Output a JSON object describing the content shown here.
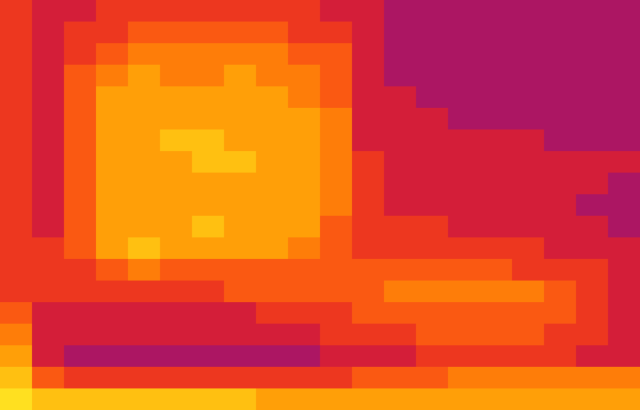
{
  "chart_data": {
    "type": "heatmap",
    "tick_labels": false,
    "zlim": [
      0,
      10
    ],
    "cells": [
      [
        5,
        4,
        4,
        5,
        5,
        5,
        5,
        5,
        5,
        5,
        4,
        4,
        3,
        3,
        3,
        3,
        3,
        3,
        3,
        3
      ],
      [
        5,
        4,
        5,
        5,
        6,
        6,
        6,
        6,
        6,
        5,
        5,
        4,
        3,
        3,
        3,
        3,
        3,
        3,
        3,
        3
      ],
      [
        5,
        4,
        5,
        6,
        7,
        7,
        7,
        7,
        7,
        6,
        6,
        4,
        3,
        3,
        3,
        3,
        3,
        3,
        3,
        3
      ],
      [
        5,
        4,
        6,
        7,
        8,
        7,
        7,
        8,
        7,
        7,
        6,
        4,
        3,
        3,
        3,
        3,
        3,
        3,
        3,
        3
      ],
      [
        5,
        4,
        6,
        8,
        8,
        8,
        8,
        8,
        8,
        7,
        6,
        4,
        4,
        3,
        3,
        3,
        3,
        3,
        3,
        3
      ],
      [
        5,
        4,
        6,
        8,
        8,
        8,
        8,
        8,
        8,
        8,
        7,
        4,
        4,
        4,
        3,
        3,
        3,
        3,
        3,
        3
      ],
      [
        5,
        4,
        6,
        8,
        8,
        9,
        9,
        8,
        8,
        8,
        7,
        4,
        4,
        4,
        4,
        4,
        4,
        3,
        3,
        3
      ],
      [
        5,
        4,
        6,
        8,
        8,
        8,
        9,
        9,
        8,
        8,
        7,
        5,
        4,
        4,
        4,
        4,
        4,
        4,
        4,
        4
      ],
      [
        5,
        4,
        6,
        8,
        8,
        8,
        8,
        8,
        8,
        8,
        7,
        5,
        4,
        4,
        4,
        4,
        4,
        4,
        4,
        3
      ],
      [
        5,
        4,
        6,
        8,
        8,
        8,
        8,
        8,
        8,
        8,
        7,
        5,
        4,
        4,
        4,
        4,
        4,
        4,
        3,
        3
      ],
      [
        5,
        4,
        6,
        8,
        8,
        8,
        9,
        8,
        8,
        8,
        6,
        5,
        5,
        5,
        4,
        4,
        4,
        4,
        4,
        3
      ],
      [
        5,
        5,
        6,
        8,
        9,
        8,
        8,
        8,
        8,
        7,
        6,
        5,
        5,
        5,
        5,
        5,
        5,
        4,
        4,
        4
      ],
      [
        5,
        5,
        5,
        6,
        7,
        6,
        6,
        6,
        6,
        6,
        6,
        6,
        6,
        6,
        6,
        6,
        5,
        5,
        5,
        4
      ],
      [
        5,
        5,
        5,
        5,
        5,
        5,
        5,
        6,
        6,
        6,
        6,
        6,
        7,
        7,
        7,
        7,
        7,
        6,
        5,
        4
      ],
      [
        6,
        4,
        4,
        4,
        4,
        4,
        4,
        4,
        5,
        5,
        5,
        6,
        6,
        6,
        6,
        6,
        6,
        6,
        5,
        4
      ],
      [
        7,
        4,
        4,
        4,
        4,
        4,
        4,
        4,
        4,
        4,
        5,
        5,
        5,
        6,
        6,
        6,
        6,
        5,
        5,
        4
      ],
      [
        8,
        4,
        3,
        3,
        3,
        3,
        3,
        3,
        3,
        3,
        4,
        4,
        4,
        5,
        5,
        5,
        5,
        5,
        4,
        4
      ],
      [
        9,
        6,
        5,
        5,
        5,
        5,
        5,
        5,
        5,
        5,
        5,
        6,
        6,
        6,
        7,
        7,
        7,
        7,
        7,
        7
      ],
      [
        10,
        9,
        9,
        9,
        9,
        9,
        9,
        9,
        8,
        8,
        8,
        8,
        8,
        8,
        8,
        8,
        8,
        8,
        8,
        8
      ]
    ]
  }
}
